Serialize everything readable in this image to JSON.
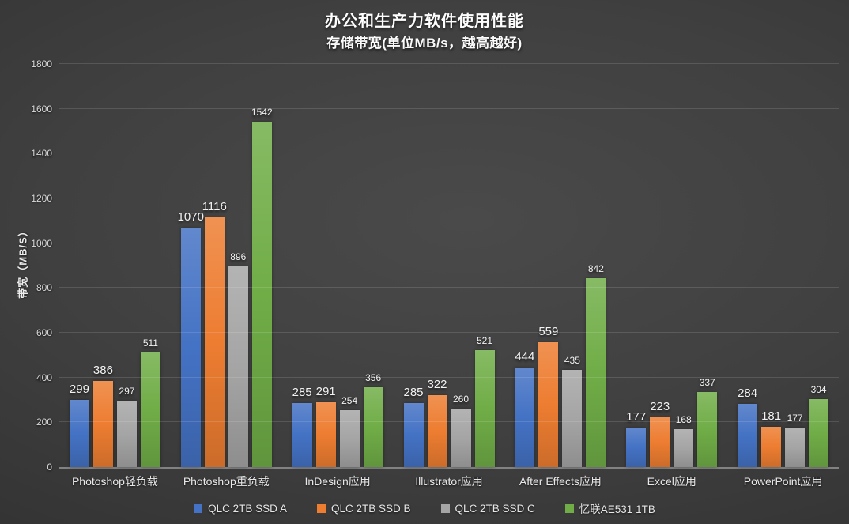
{
  "header": {
    "title": "办公和生产力软件使用性能",
    "subtitle": "存储带宽(单位MB/s，越高越好)"
  },
  "chart_data": {
    "type": "bar",
    "title": "办公和生产力软件使用性能",
    "subtitle": "存储带宽(单位MB/s，越高越好)",
    "ylabel": "带宽（MB/S）",
    "xlabel": "",
    "ylim": [
      0,
      1800
    ],
    "ytick_step": 200,
    "grid": true,
    "legend_position": "bottom",
    "categories": [
      "Photoshop轻负载",
      "Photoshop重负载",
      "InDesign应用",
      "Illustrator应用",
      "After Effects应用",
      "Excel应用",
      "PowerPoint应用"
    ],
    "series": [
      {
        "name": "QLC 2TB SSD A",
        "color": "#4472C4",
        "values": [
          299,
          1070,
          285,
          285,
          444,
          177,
          284
        ]
      },
      {
        "name": "QLC 2TB SSD B",
        "color": "#ED7D31",
        "values": [
          386,
          1116,
          291,
          322,
          559,
          223,
          181
        ]
      },
      {
        "name": "QLC 2TB SSD C",
        "color": "#A5A5A5",
        "values": [
          297,
          896,
          254,
          260,
          435,
          168,
          177
        ]
      },
      {
        "name": "忆联AE531 1TB",
        "color": "#70AD47",
        "values": [
          511,
          1542,
          356,
          521,
          842,
          337,
          304
        ]
      }
    ]
  }
}
